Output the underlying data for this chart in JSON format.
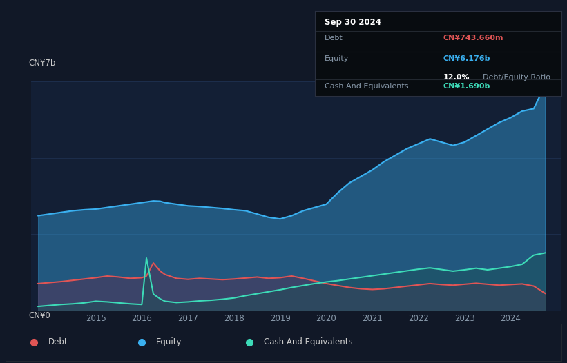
{
  "bg_color": "#111827",
  "plot_bg_color": "#131f35",
  "ylabel_top": "CN¥7b",
  "ylabel_bottom": "CN¥0",
  "ylim": [
    0,
    7000000000
  ],
  "xlim_start": 2013.6,
  "xlim_end": 2025.1,
  "xticks": [
    2015,
    2016,
    2017,
    2018,
    2019,
    2020,
    2021,
    2022,
    2023,
    2024
  ],
  "debt_color": "#e05555",
  "equity_color": "#3ab0f0",
  "cash_color": "#3ddbb8",
  "tooltip_bg": "#080c10",
  "tooltip_date": "Sep 30 2024",
  "tooltip_debt_label": "Debt",
  "tooltip_debt_value": "CN¥743.660m",
  "tooltip_equity_label": "Equity",
  "tooltip_equity_value": "CN¥6.176b",
  "tooltip_ratio": "12.0%",
  "tooltip_ratio_label": "Debt/Equity Ratio",
  "tooltip_cash_label": "Cash And Equivalents",
  "tooltip_cash_value": "CN¥1.690b",
  "legend_debt": "Debt",
  "legend_equity": "Equity",
  "legend_cash": "Cash And Equivalents",
  "years": [
    2013.75,
    2014.0,
    2014.25,
    2014.5,
    2014.75,
    2015.0,
    2015.25,
    2015.5,
    2015.75,
    2016.0,
    2016.1,
    2016.25,
    2016.4,
    2016.5,
    2016.75,
    2017.0,
    2017.25,
    2017.5,
    2017.75,
    2018.0,
    2018.25,
    2018.5,
    2018.75,
    2019.0,
    2019.25,
    2019.5,
    2019.75,
    2020.0,
    2020.25,
    2020.5,
    2020.75,
    2021.0,
    2021.25,
    2021.5,
    2021.75,
    2022.0,
    2022.25,
    2022.5,
    2022.75,
    2023.0,
    2023.25,
    2023.5,
    2023.75,
    2024.0,
    2024.25,
    2024.5,
    2024.75
  ],
  "equity": [
    2900000000,
    2950000000,
    3000000000,
    3050000000,
    3080000000,
    3100000000,
    3150000000,
    3200000000,
    3250000000,
    3300000000,
    3320000000,
    3350000000,
    3340000000,
    3300000000,
    3250000000,
    3200000000,
    3180000000,
    3150000000,
    3120000000,
    3080000000,
    3050000000,
    2950000000,
    2850000000,
    2800000000,
    2900000000,
    3050000000,
    3150000000,
    3250000000,
    3600000000,
    3900000000,
    4100000000,
    4300000000,
    4550000000,
    4750000000,
    4950000000,
    5100000000,
    5250000000,
    5150000000,
    5050000000,
    5150000000,
    5350000000,
    5550000000,
    5750000000,
    5900000000,
    6100000000,
    6176000000,
    6900000000
  ],
  "debt": [
    820000000,
    850000000,
    880000000,
    920000000,
    960000000,
    1000000000,
    1050000000,
    1020000000,
    980000000,
    1000000000,
    1050000000,
    1450000000,
    1200000000,
    1100000000,
    980000000,
    950000000,
    980000000,
    960000000,
    940000000,
    960000000,
    990000000,
    1020000000,
    980000000,
    1000000000,
    1050000000,
    980000000,
    900000000,
    820000000,
    760000000,
    700000000,
    660000000,
    640000000,
    660000000,
    700000000,
    740000000,
    780000000,
    820000000,
    790000000,
    770000000,
    800000000,
    830000000,
    800000000,
    770000000,
    790000000,
    810000000,
    743660000,
    520000000
  ],
  "cash": [
    120000000,
    150000000,
    180000000,
    200000000,
    230000000,
    280000000,
    260000000,
    230000000,
    200000000,
    180000000,
    1600000000,
    500000000,
    350000000,
    280000000,
    240000000,
    260000000,
    290000000,
    310000000,
    340000000,
    380000000,
    450000000,
    510000000,
    570000000,
    630000000,
    700000000,
    760000000,
    820000000,
    870000000,
    910000000,
    960000000,
    1010000000,
    1060000000,
    1110000000,
    1160000000,
    1210000000,
    1260000000,
    1300000000,
    1250000000,
    1200000000,
    1240000000,
    1290000000,
    1240000000,
    1290000000,
    1340000000,
    1410000000,
    1690000000,
    1760000000
  ]
}
